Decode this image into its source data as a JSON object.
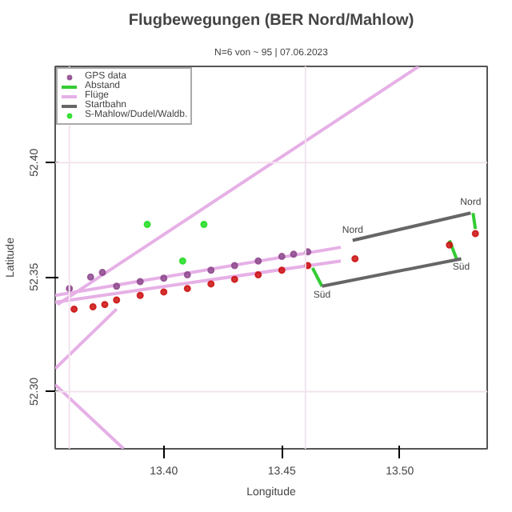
{
  "chart_data": {
    "type": "scatter",
    "title": "Flugbewegungen (BER Nord/Mahlow)",
    "subtitle": "N=6 von ~ 95 | 07.06.2023",
    "xlabel": "Longitude",
    "ylabel": "Latitude",
    "xlim": [
      13.354,
      13.537
    ],
    "ylim": [
      52.275,
      52.442
    ],
    "xticks": [
      {
        "value": 13.4,
        "label": "13.40"
      },
      {
        "value": 13.45,
        "label": "13.45"
      },
      {
        "value": 13.5,
        "label": "13.50"
      }
    ],
    "yticks": [
      {
        "value": 52.3,
        "label": "52.30"
      },
      {
        "value": 52.35,
        "label": "52.35"
      },
      {
        "value": 52.4,
        "label": "52.40"
      }
    ],
    "grid": false,
    "legend": "top left",
    "series": [
      {
        "name": "GPS data",
        "color": "#8e4a8e",
        "x": [
          13.36,
          13.369,
          13.374,
          13.38,
          13.39,
          13.4,
          13.41,
          13.42,
          13.43,
          13.44,
          13.45,
          13.455,
          13.461
        ],
        "values": [
          52.345,
          52.35,
          52.352,
          52.346,
          52.348,
          52.3495,
          52.351,
          52.353,
          52.355,
          52.357,
          52.359,
          52.36,
          52.361
        ]
      },
      {
        "color": "#cc1111",
        "x": [
          13.362,
          13.37,
          13.375,
          13.38,
          13.39,
          13.4,
          13.41,
          13.42,
          13.43,
          13.44,
          13.45,
          13.461,
          13.481,
          13.521,
          13.532
        ],
        "values": [
          52.336,
          52.337,
          52.338,
          52.34,
          52.342,
          52.3435,
          52.345,
          52.347,
          52.349,
          52.351,
          52.353,
          52.355,
          52.358,
          52.364,
          52.369
        ]
      },
      {
        "name": "Abstand",
        "type": "line",
        "color": "#33cc33",
        "x": [
          13.463,
          13.467
        ],
        "values": [
          52.354,
          52.346
        ]
      },
      {
        "type": "line",
        "color": "#33cc33",
        "x": [
          13.531,
          13.532
        ],
        "values": [
          52.378,
          52.371
        ]
      },
      {
        "type": "line",
        "color": "#33cc33",
        "x": [
          13.521,
          13.524
        ],
        "values": [
          52.366,
          52.358
        ]
      },
      {
        "name": "Flüge",
        "type": "line",
        "color": "#e6b0e6",
        "x": [
          13.355,
          13.508
        ],
        "values": [
          52.338,
          52.442
        ]
      },
      {
        "type": "line",
        "color": "#e6b0e6",
        "x": [
          13.354,
          13.38
        ],
        "values": [
          52.31,
          52.336
        ]
      },
      {
        "type": "line",
        "color": "#e6b0e6",
        "x": [
          13.354,
          13.383
        ],
        "values": [
          52.303,
          52.275
        ]
      },
      {
        "type": "line",
        "color": "#e6b0e6",
        "x": [
          13.354,
          13.475
        ],
        "values": [
          52.342,
          52.363
        ]
      },
      {
        "type": "line",
        "color": "#e6b0e6",
        "x": [
          13.354,
          13.475
        ],
        "values": [
          52.339,
          52.357
        ]
      },
      {
        "name": "Startbahn",
        "type": "line",
        "color": "#666666",
        "x": [
          13.48,
          13.53
        ],
        "values": [
          52.366,
          52.378
        ]
      },
      {
        "type": "line",
        "color": "#666666",
        "x": [
          13.467,
          13.526
        ],
        "values": [
          52.346,
          52.358
        ]
      },
      {
        "name": "S-Mahlow/Dudel/Waldb.",
        "color": "#22dd22",
        "x": [
          13.393,
          13.417,
          13.408
        ],
        "values": [
          52.373,
          52.373,
          52.357
        ]
      }
    ],
    "ref_lines": [
      {
        "axis": "x",
        "value": 13.36,
        "color": "#f2e4ee"
      },
      {
        "axis": "x",
        "value": 13.46,
        "color": "#f2e4ee"
      },
      {
        "axis": "y",
        "value": 52.4,
        "color": "#f2e4ee"
      },
      {
        "axis": "y",
        "value": 52.3,
        "color": "#f2e4ee"
      }
    ],
    "annotations": [
      {
        "text": "Nord",
        "x": 13.48,
        "y": 52.366
      },
      {
        "text": "Süd",
        "x": 13.467,
        "y": 52.346
      },
      {
        "text": "Nord",
        "x": 13.53,
        "y": 52.378
      },
      {
        "text": "Süd",
        "x": 13.526,
        "y": 52.358
      }
    ]
  }
}
